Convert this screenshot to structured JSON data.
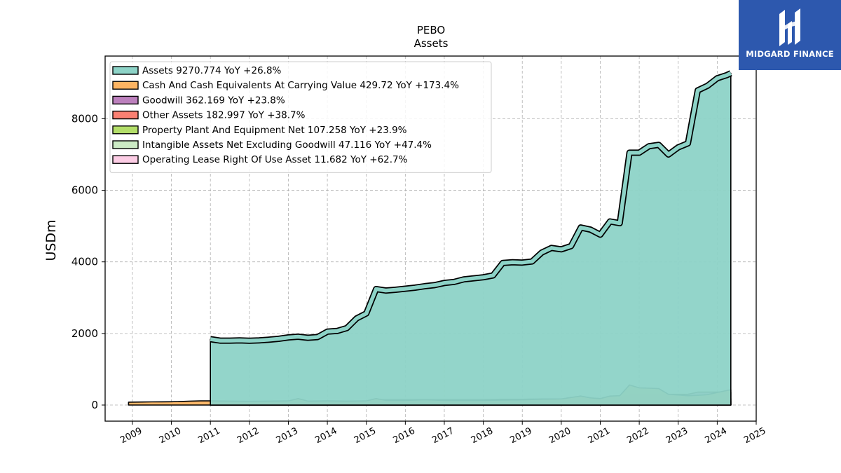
{
  "brand": {
    "name": "MIDGARD FINANCE",
    "bg_color": "#2d58ae",
    "icon": "midgard-logo-icon"
  },
  "chart_data": {
    "type": "area",
    "title": "PEBO",
    "subtitle": "Assets",
    "xlabel": "",
    "ylabel": "USDm",
    "xlim": [
      2008.3,
      2025.0
    ],
    "ylim": [
      -450,
      9750
    ],
    "x_ticks": [
      "2009",
      "2010",
      "2011",
      "2012",
      "2013",
      "2014",
      "2015",
      "2016",
      "2017",
      "2018",
      "2019",
      "2020",
      "2021",
      "2022",
      "2023",
      "2024",
      "2025"
    ],
    "y_ticks": [
      0,
      2000,
      4000,
      6000,
      8000
    ],
    "grid": true,
    "legend_position": "top-left",
    "series": [
      {
        "name": "Assets",
        "legend": "Assets  9270.774 YoY +26.8%",
        "color": "#8dd3c7",
        "points": [
          [
            2011.0,
            1840
          ],
          [
            2011.25,
            1800
          ],
          [
            2011.5,
            1800
          ],
          [
            2011.75,
            1805
          ],
          [
            2012.0,
            1795
          ],
          [
            2012.25,
            1805
          ],
          [
            2012.5,
            1825
          ],
          [
            2012.75,
            1850
          ],
          [
            2013.0,
            1890
          ],
          [
            2013.25,
            1910
          ],
          [
            2013.5,
            1880
          ],
          [
            2013.75,
            1900
          ],
          [
            2014.0,
            2050
          ],
          [
            2014.25,
            2070
          ],
          [
            2014.5,
            2150
          ],
          [
            2014.75,
            2420
          ],
          [
            2015.0,
            2560
          ],
          [
            2015.25,
            3240
          ],
          [
            2015.5,
            3200
          ],
          [
            2015.75,
            3220
          ],
          [
            2016.0,
            3250
          ],
          [
            2016.25,
            3280
          ],
          [
            2016.5,
            3320
          ],
          [
            2016.75,
            3350
          ],
          [
            2017.0,
            3410
          ],
          [
            2017.25,
            3440
          ],
          [
            2017.5,
            3510
          ],
          [
            2017.75,
            3540
          ],
          [
            2018.0,
            3570
          ],
          [
            2018.25,
            3620
          ],
          [
            2018.5,
            3970
          ],
          [
            2018.75,
            3990
          ],
          [
            2019.0,
            3980
          ],
          [
            2019.25,
            4010
          ],
          [
            2019.5,
            4260
          ],
          [
            2019.75,
            4390
          ],
          [
            2020.0,
            4350
          ],
          [
            2020.25,
            4440
          ],
          [
            2020.5,
            4960
          ],
          [
            2020.75,
            4900
          ],
          [
            2021.0,
            4760
          ],
          [
            2021.25,
            5130
          ],
          [
            2021.5,
            5080
          ],
          [
            2021.75,
            7050
          ],
          [
            2022.0,
            7050
          ],
          [
            2022.25,
            7230
          ],
          [
            2022.5,
            7270
          ],
          [
            2022.75,
            7000
          ],
          [
            2023.0,
            7200
          ],
          [
            2023.25,
            7310
          ],
          [
            2023.5,
            8790
          ],
          [
            2023.75,
            8920
          ],
          [
            2024.0,
            9130
          ],
          [
            2024.25,
            9220
          ],
          [
            2024.35,
            9270
          ]
        ]
      },
      {
        "name": "Cash And Cash Equivalents At Carrying Value",
        "legend": "Cash And Cash Equivalents At Carrying Value  429.72 YoY +173.4%",
        "color": "#fdb462",
        "points": [
          [
            2008.9,
            80
          ],
          [
            2009.25,
            85
          ],
          [
            2009.5,
            88
          ],
          [
            2009.75,
            90
          ],
          [
            2010.0,
            92
          ],
          [
            2010.25,
            100
          ],
          [
            2010.5,
            110
          ],
          [
            2010.75,
            115
          ],
          [
            2011.0,
            115
          ],
          [
            2011.5,
            110
          ],
          [
            2012.0,
            105
          ],
          [
            2012.5,
            110
          ],
          [
            2013.0,
            115
          ],
          [
            2013.25,
            180
          ],
          [
            2013.5,
            110
          ],
          [
            2014.0,
            115
          ],
          [
            2014.5,
            110
          ],
          [
            2015.0,
            115
          ],
          [
            2015.25,
            180
          ],
          [
            2015.5,
            130
          ],
          [
            2016.0,
            130
          ],
          [
            2016.5,
            150
          ],
          [
            2017.0,
            130
          ],
          [
            2017.5,
            125
          ],
          [
            2018.0,
            130
          ],
          [
            2018.5,
            140
          ],
          [
            2019.0,
            145
          ],
          [
            2019.5,
            160
          ],
          [
            2020.0,
            170
          ],
          [
            2020.5,
            250
          ],
          [
            2020.75,
            200
          ],
          [
            2021.0,
            180
          ],
          [
            2021.25,
            250
          ],
          [
            2021.5,
            260
          ],
          [
            2021.75,
            560
          ],
          [
            2022.0,
            480
          ],
          [
            2022.25,
            470
          ],
          [
            2022.5,
            460
          ],
          [
            2022.75,
            300
          ],
          [
            2023.0,
            280
          ],
          [
            2023.25,
            260
          ],
          [
            2023.5,
            270
          ],
          [
            2023.75,
            290
          ],
          [
            2024.0,
            350
          ],
          [
            2024.35,
            430
          ]
        ]
      },
      {
        "name": "Goodwill",
        "legend": "Goodwill  362.169 YoY +23.8%",
        "color": "#bc80bd",
        "points": [
          [
            2011.0,
            65
          ],
          [
            2012.0,
            65
          ],
          [
            2013.0,
            65
          ],
          [
            2013.5,
            70
          ],
          [
            2014.0,
            75
          ],
          [
            2014.5,
            90
          ],
          [
            2015.0,
            100
          ],
          [
            2015.25,
            150
          ],
          [
            2016.0,
            150
          ],
          [
            2017.0,
            150
          ],
          [
            2018.0,
            150
          ],
          [
            2018.5,
            160
          ],
          [
            2019.0,
            160
          ],
          [
            2019.5,
            170
          ],
          [
            2020.0,
            170
          ],
          [
            2020.5,
            180
          ],
          [
            2021.0,
            180
          ],
          [
            2021.5,
            190
          ],
          [
            2021.75,
            300
          ],
          [
            2022.0,
            300
          ],
          [
            2022.5,
            300
          ],
          [
            2023.0,
            300
          ],
          [
            2023.25,
            300
          ],
          [
            2023.5,
            360
          ],
          [
            2024.0,
            360
          ],
          [
            2024.35,
            362
          ]
        ]
      },
      {
        "name": "Other Assets",
        "legend": "Other Assets  182.997 YoY +38.7%",
        "color": "#fb8072",
        "points": [
          [
            2011.0,
            60
          ],
          [
            2012.0,
            60
          ],
          [
            2013.0,
            60
          ],
          [
            2013.25,
            120
          ],
          [
            2013.5,
            60
          ],
          [
            2014.0,
            65
          ],
          [
            2015.0,
            70
          ],
          [
            2015.25,
            120
          ],
          [
            2016.0,
            80
          ],
          [
            2016.5,
            110
          ],
          [
            2017.0,
            80
          ],
          [
            2018.0,
            85
          ],
          [
            2019.0,
            90
          ],
          [
            2020.0,
            100
          ],
          [
            2020.5,
            250
          ],
          [
            2020.75,
            110
          ],
          [
            2021.0,
            110
          ],
          [
            2021.25,
            250
          ],
          [
            2021.5,
            140
          ],
          [
            2022.0,
            150
          ],
          [
            2022.5,
            160
          ],
          [
            2023.0,
            150
          ],
          [
            2023.25,
            140
          ],
          [
            2023.5,
            200
          ],
          [
            2024.0,
            180
          ],
          [
            2024.35,
            183
          ]
        ]
      },
      {
        "name": "Property Plant And Equipment Net",
        "legend": "Property Plant And Equipment Net  107.258 YoY +23.9%",
        "color": "#b3de69",
        "points": [
          [
            2011.0,
            40
          ],
          [
            2012.0,
            42
          ],
          [
            2013.0,
            44
          ],
          [
            2014.0,
            46
          ],
          [
            2015.0,
            50
          ],
          [
            2016.0,
            52
          ],
          [
            2017.0,
            54
          ],
          [
            2018.0,
            56
          ],
          [
            2019.0,
            58
          ],
          [
            2020.0,
            60
          ],
          [
            2021.0,
            65
          ],
          [
            2021.75,
            90
          ],
          [
            2022.0,
            92
          ],
          [
            2023.0,
            88
          ],
          [
            2023.5,
            95
          ],
          [
            2024.0,
            105
          ],
          [
            2024.35,
            107
          ]
        ]
      },
      {
        "name": "Intangible Assets Net Excluding Goodwill",
        "legend": "Intangible Assets Net Excluding Goodwill  47.116 YoY +47.4%",
        "color": "#ccebc5",
        "points": [
          [
            2011.0,
            18
          ],
          [
            2012.0,
            16
          ],
          [
            2013.0,
            14
          ],
          [
            2014.0,
            12
          ],
          [
            2015.0,
            15
          ],
          [
            2015.25,
            25
          ],
          [
            2016.0,
            22
          ],
          [
            2017.0,
            20
          ],
          [
            2018.0,
            18
          ],
          [
            2019.0,
            16
          ],
          [
            2019.9,
            14
          ]
        ]
      },
      {
        "name": "Operating Lease Right Of Use Asset",
        "legend": "Operating Lease Right Of Use Asset  11.682 YoY +62.7%",
        "color": "#fccde5",
        "points": [
          [
            2019.9,
            8
          ],
          [
            2020.5,
            8
          ],
          [
            2021.0,
            8
          ],
          [
            2021.5,
            8
          ],
          [
            2022.0,
            8
          ],
          [
            2022.5,
            8
          ],
          [
            2023.0,
            8
          ],
          [
            2023.5,
            10
          ],
          [
            2024.0,
            11
          ],
          [
            2024.35,
            11.7
          ]
        ]
      }
    ]
  }
}
